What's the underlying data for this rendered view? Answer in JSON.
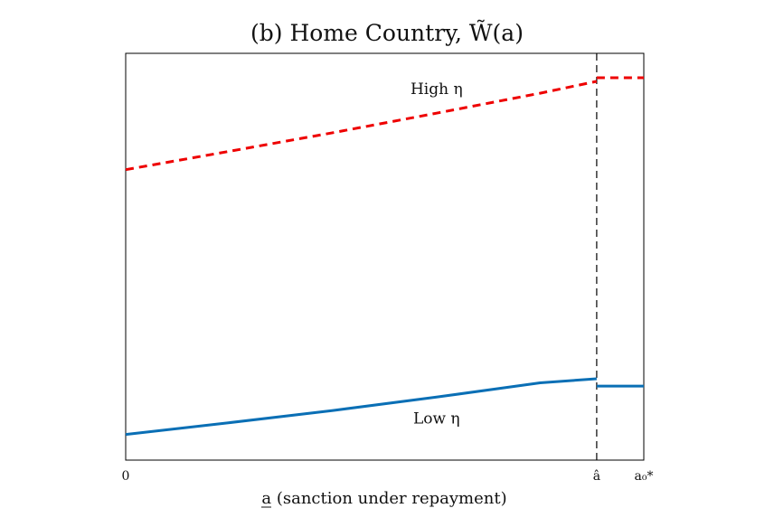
{
  "chart_data": {
    "type": "line",
    "title": "(b) Home Country, W̃(a)",
    "xlabel": "a (sanction under repayment)",
    "ylabel": "",
    "x_ticks": [
      {
        "value": 0,
        "label": "0"
      },
      {
        "value": 0.9091,
        "label": "â"
      },
      {
        "value": 1.0,
        "label": "a₀*"
      }
    ],
    "xlim": [
      0,
      1.0
    ],
    "ylim": [
      0,
      1.0
    ],
    "grid": false,
    "legend": "none",
    "vline": {
      "x": 0.9091,
      "style": "dashed",
      "color": "#000000"
    },
    "annotations": [
      {
        "text": "High η",
        "x": 0.6,
        "y": 0.9
      },
      {
        "text": "Low η",
        "x": 0.6,
        "y": 0.09
      }
    ],
    "series": [
      {
        "style": "dashed",
        "color": "#ee0000",
        "segments": [
          {
            "x": [
              0,
              0.2,
              0.4,
              0.6,
              0.8,
              0.9091
            ],
            "y": [
              0.714,
              0.759,
              0.805,
              0.853,
              0.902,
              0.931
            ]
          },
          {
            "x": [
              0.9091,
              1.0
            ],
            "y": [
              0.94,
              0.94
            ]
          }
        ]
      },
      {
        "style": "solid",
        "color": "#0a6fb5",
        "segments": [
          {
            "x": [
              0,
              0.2,
              0.4,
              0.6,
              0.8,
              0.9091
            ],
            "y": [
              0.063,
              0.092,
              0.122,
              0.155,
              0.19,
              0.2
            ]
          },
          {
            "x": [
              0.9091,
              1.0
            ],
            "y": [
              0.182,
              0.182
            ]
          }
        ]
      }
    ]
  }
}
